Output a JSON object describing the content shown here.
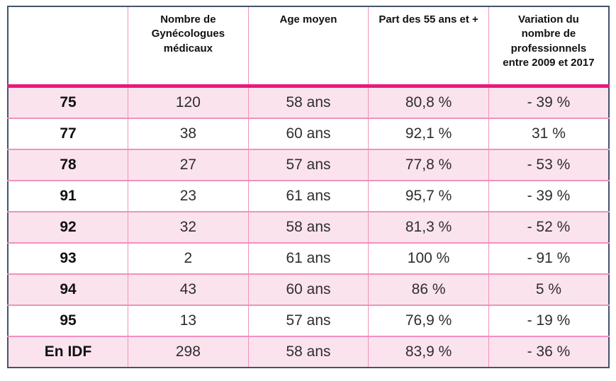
{
  "colors": {
    "outer_border": "#44546A",
    "header_underline": "#E8197B",
    "grid_line": "#F092BC",
    "row_pink": "#FBE3EE",
    "row_white": "#FFFFFF",
    "text": "#111111"
  },
  "table": {
    "columns": [
      "",
      "Nombre de Gynécologues médicaux",
      "Age moyen",
      "Part des 55 ans et +",
      "Variation du nombre de professionnels entre 2009 et 2017"
    ],
    "rows": [
      [
        "75",
        "120",
        "58 ans",
        "80,8 %",
        "- 39 %"
      ],
      [
        "77",
        "38",
        "60 ans",
        "92,1 %",
        "31 %"
      ],
      [
        "78",
        "27",
        "57 ans",
        "77,8 %",
        "- 53 %"
      ],
      [
        "91",
        "23",
        "61 ans",
        "95,7 %",
        "- 39 %"
      ],
      [
        "92",
        "32",
        "58 ans",
        "81,3 %",
        "- 52 %"
      ],
      [
        "93",
        "2",
        "61 ans",
        "100 %",
        "- 91 %"
      ],
      [
        "94",
        "43",
        "60 ans",
        "86 %",
        "5 %"
      ],
      [
        "95",
        "13",
        "57 ans",
        "76,9 %",
        "- 19 %"
      ],
      [
        "En IDF",
        "298",
        "58 ans",
        "83,9 %",
        "- 36 %"
      ]
    ]
  }
}
